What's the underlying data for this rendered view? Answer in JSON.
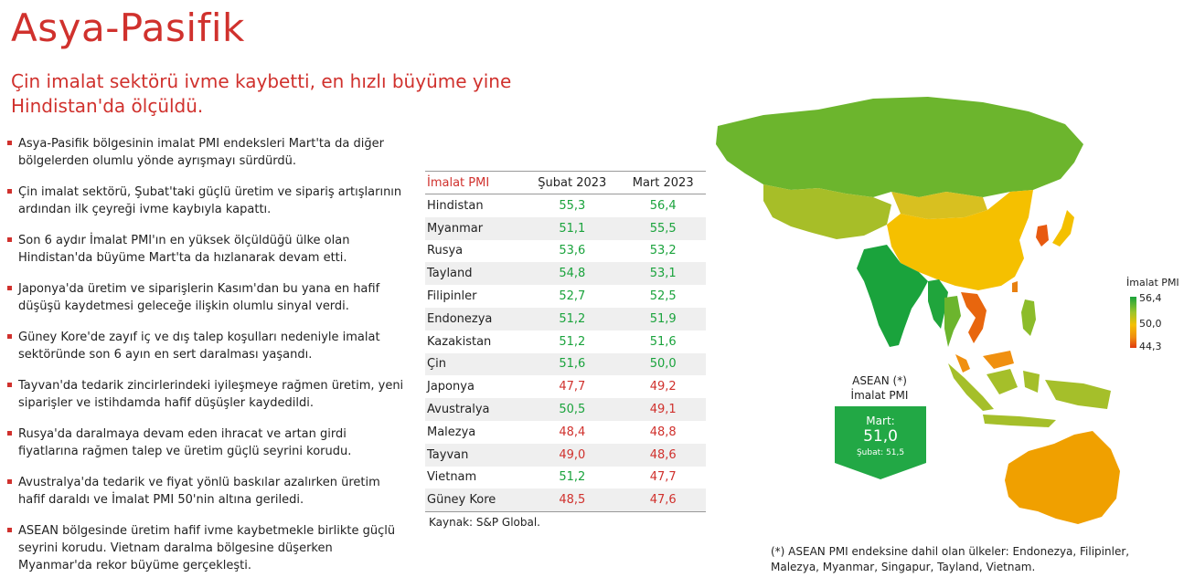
{
  "title": "Asya-Pasifik",
  "subtitle": "Çin imalat sektörü ivme kaybetti, en hızlı büyüme yine Hindistan'da ölçüldü.",
  "bullets": [
    "Asya-Pasifik bölgesinin imalat PMI endeksleri Mart'ta da diğer bölgelerden olumlu yönde ayrışmayı sürdürdü.",
    "Çin imalat sektörü, Şubat'taki güçlü üretim ve sipariş artışlarının ardından ilk çeyreği ivme kaybıyla kapattı.",
    "Son 6 aydır İmalat PMI'ın en yüksek ölçüldüğü ülke olan Hindistan'da büyüme Mart'ta da hızlanarak devam etti.",
    "Japonya'da üretim ve siparişlerin Kasım'dan bu yana en hafif düşüşü kaydetmesi geleceğe ilişkin olumlu sinyal verdi.",
    "Güney Kore'de zayıf iç ve dış talep koşulları nedeniyle imalat sektöründe son 6 ayın en sert daralması yaşandı.",
    "Tayvan'da tedarik zincirlerindeki iyileşmeye rağmen üretim, yeni siparişler ve istihdamda hafif düşüşler kaydedildi.",
    "Rusya'da daralmaya devam eden ihracat ve artan girdi fiyatlarına rağmen talep ve üretim güçlü seyrini korudu.",
    "Avustralya'da tedarik ve fiyat yönlü baskılar azalırken üretim hafif daraldı ve İmalat PMI 50'nin altına geriledi.",
    "ASEAN bölgesinde üretim hafif ivme kaybetmekle birlikte güçlü seyrini korudu. Vietnam daralma bölgesine düşerken Myanmar'da rekor büyüme gerçekleşti."
  ],
  "table": {
    "headers": [
      "İmalat PMI",
      "Şubat 2023",
      "Mart 2023"
    ],
    "rows": [
      {
        "country": "Hindistan",
        "feb": "55,3",
        "mar": "56,4",
        "feb_color": "green",
        "mar_color": "green"
      },
      {
        "country": "Myanmar",
        "feb": "51,1",
        "mar": "55,5",
        "feb_color": "green",
        "mar_color": "green"
      },
      {
        "country": "Rusya",
        "feb": "53,6",
        "mar": "53,2",
        "feb_color": "green",
        "mar_color": "green"
      },
      {
        "country": "Tayland",
        "feb": "54,8",
        "mar": "53,1",
        "feb_color": "green",
        "mar_color": "green"
      },
      {
        "country": "Filipinler",
        "feb": "52,7",
        "mar": "52,5",
        "feb_color": "green",
        "mar_color": "green"
      },
      {
        "country": "Endonezya",
        "feb": "51,2",
        "mar": "51,9",
        "feb_color": "green",
        "mar_color": "green"
      },
      {
        "country": "Kazakistan",
        "feb": "51,2",
        "mar": "51,6",
        "feb_color": "green",
        "mar_color": "green"
      },
      {
        "country": "Çin",
        "feb": "51,6",
        "mar": "50,0",
        "feb_color": "green",
        "mar_color": "green"
      },
      {
        "country": "Japonya",
        "feb": "47,7",
        "mar": "49,2",
        "feb_color": "red",
        "mar_color": "red"
      },
      {
        "country": "Avustralya",
        "feb": "50,5",
        "mar": "49,1",
        "feb_color": "green",
        "mar_color": "red"
      },
      {
        "country": "Malezya",
        "feb": "48,4",
        "mar": "48,8",
        "feb_color": "red",
        "mar_color": "red"
      },
      {
        "country": "Tayvan",
        "feb": "49,0",
        "mar": "48,6",
        "feb_color": "red",
        "mar_color": "red"
      },
      {
        "country": "Vietnam",
        "feb": "51,2",
        "mar": "47,7",
        "feb_color": "green",
        "mar_color": "red"
      },
      {
        "country": "Güney Kore",
        "feb": "48,5",
        "mar": "47,6",
        "feb_color": "red",
        "mar_color": "red"
      }
    ]
  },
  "source": "Kaynak: S&P Global.",
  "legend": {
    "title": "İmalat PMI",
    "max": "56,4",
    "mid": "50,0",
    "min": "44,3"
  },
  "asean": {
    "label_line1": "ASEAN (*)",
    "label_line2": "İmalat PMI",
    "month": "Mart:",
    "value": "51,0",
    "prev": "Şubat: 51,5"
  },
  "footnote": "(*) ASEAN PMI endeksine dahil olan ülkeler: Endonezya, Filipinler, Malezya, Myanmar, Singapur, Tayland, Vietnam.",
  "colors": {
    "accent": "#d0312d",
    "positive": "#1aa33c",
    "negative": "#d0312d",
    "asean_box": "#22a845"
  }
}
